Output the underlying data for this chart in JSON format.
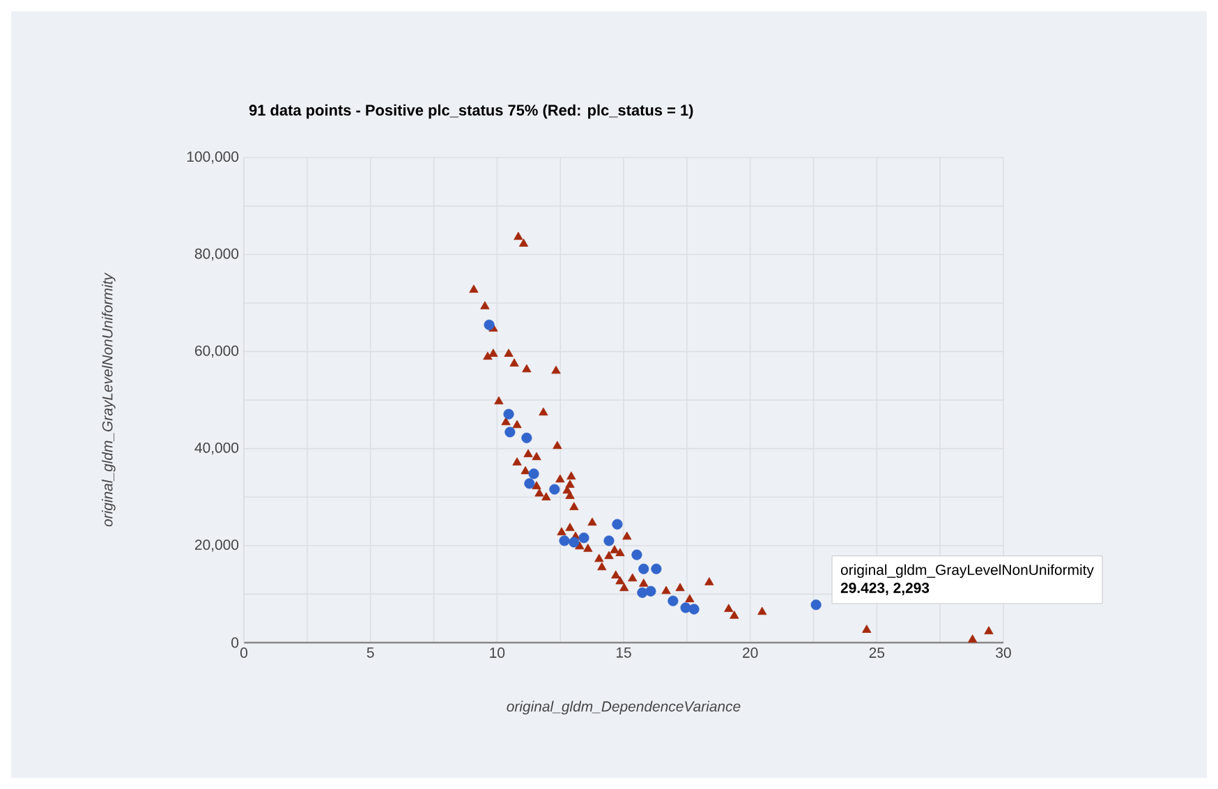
{
  "chart_data": {
    "type": "scatter",
    "title": "91 data points - Positive plc_status 75% (Red: plc_status = 1)",
    "xlabel": "original_gldm_DependenceVariance",
    "ylabel": "original_gldm_GrayLevelNonUniformity",
    "xlim": [
      0,
      30
    ],
    "ylim": [
      0,
      100000
    ],
    "xticks": [
      0,
      {
        "value": 2.5,
        "label": null
      },
      5,
      {
        "value": 7.5,
        "label": null
      },
      10,
      {
        "value": 12.5,
        "label": null
      },
      15,
      {
        "value": 17.5,
        "label": null
      },
      20,
      {
        "value": 22.5,
        "label": null
      },
      25,
      {
        "value": 27.5,
        "label": null
      },
      30
    ],
    "yticks": [
      {
        "value": 0,
        "label": "0"
      },
      {
        "value": 10000,
        "label": null
      },
      {
        "value": 20000,
        "label": "20,000"
      },
      {
        "value": 30000,
        "label": null
      },
      {
        "value": 40000,
        "label": "40,000"
      },
      {
        "value": 50000,
        "label": null
      },
      {
        "value": 60000,
        "label": "60,000"
      },
      {
        "value": 70000,
        "label": null
      },
      {
        "value": 80000,
        "label": "80,000"
      },
      {
        "value": 90000,
        "label": null
      },
      {
        "value": 100000,
        "label": "100,000"
      }
    ],
    "grid": true,
    "series": [
      {
        "color": "#a52a0d",
        "marker": "triangle",
        "x": [
          10.84,
          11.05,
          9.08,
          9.52,
          9.85,
          9.63,
          9.85,
          10.46,
          10.68,
          11.17,
          12.33,
          10.07,
          11.83,
          10.35,
          10.79,
          12.38,
          11.23,
          11.56,
          10.79,
          11.12,
          12.49,
          12.93,
          12.88,
          11.56,
          12.77,
          11.67,
          12.88,
          11.94,
          13.04,
          13.76,
          12.55,
          12.88,
          13.1,
          13.26,
          13.59,
          15.13,
          14.03,
          14.14,
          14.42,
          14.64,
          14.86,
          14.69,
          14.86,
          15.02,
          15.35,
          15.79,
          16.68,
          17.23,
          17.61,
          18.38,
          19.15,
          19.37,
          20.47,
          24.6,
          28.78,
          29.423
        ],
        "values": [
          83600,
          82200,
          72700,
          69300,
          64700,
          58900,
          59500,
          59500,
          57500,
          56300,
          56000,
          49700,
          47400,
          45400,
          44800,
          40500,
          38800,
          38200,
          37100,
          35300,
          33600,
          34200,
          32500,
          32200,
          31300,
          30700,
          30200,
          29900,
          27900,
          24700,
          22700,
          23600,
          21800,
          19800,
          19300,
          21800,
          17200,
          15500,
          17800,
          19000,
          18400,
          13800,
          12600,
          11200,
          13200,
          12100,
          10600,
          11200,
          8900,
          12400,
          6900,
          5500,
          6300,
          2600,
          600,
          2293
        ]
      },
      {
        "color": "#3366cc",
        "marker": "circle",
        "x": [
          9.69,
          10.46,
          10.51,
          11.17,
          11.45,
          11.28,
          12.27,
          14.75,
          12.66,
          13.04,
          13.43,
          14.42,
          15.52,
          15.79,
          16.29,
          15.74,
          16.07,
          16.95,
          17.45,
          17.78,
          22.6
        ],
        "values": [
          65500,
          47100,
          43400,
          42200,
          34800,
          32800,
          31600,
          24400,
          21000,
          20700,
          21600,
          21000,
          18100,
          15200,
          15200,
          10300,
          10600,
          8600,
          7200,
          6900,
          7800
        ]
      }
    ],
    "annotations": [
      "original_gldm_GrayLevelNonUniformity",
      "29.423, 2,293"
    ]
  }
}
